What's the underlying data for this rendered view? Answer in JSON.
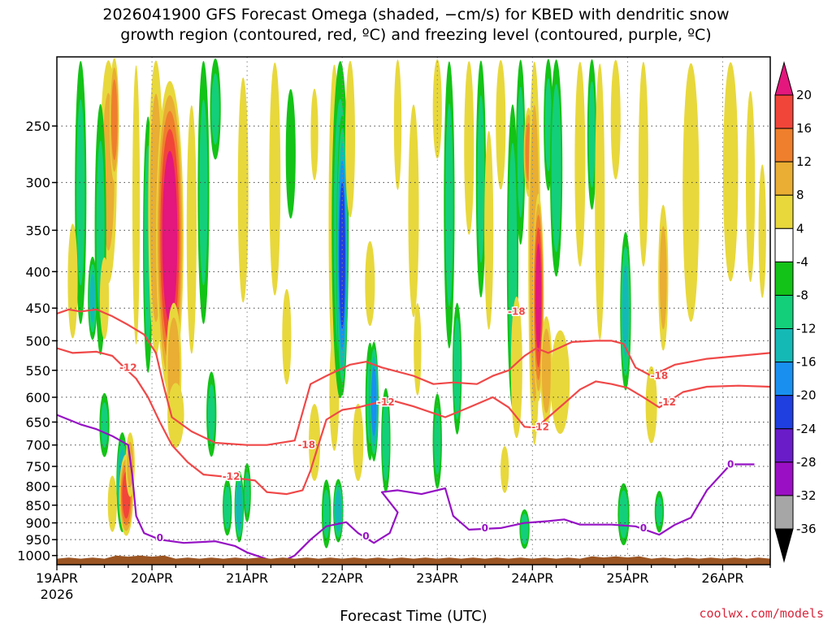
{
  "chart_data": {
    "type": "heatmap",
    "title_lines": [
      "2026041900 GFS Forecast Omega (shaded, −cm/s) for KBED with dendritic snow",
      "growth region (contoured, red, ºC) and freezing level (contoured, purple, ºC)"
    ],
    "xlabel": "Forecast Time (UTC)",
    "ylabel": "",
    "credit": "coolwx.com/models",
    "x_ticks": [
      {
        "t": 0,
        "label": "19APR",
        "sub": "2026"
      },
      {
        "t": 24,
        "label": "20APR",
        "sub": ""
      },
      {
        "t": 48,
        "label": "21APR",
        "sub": ""
      },
      {
        "t": 72,
        "label": "22APR",
        "sub": ""
      },
      {
        "t": 96,
        "label": "23APR",
        "sub": ""
      },
      {
        "t": 120,
        "label": "24APR",
        "sub": ""
      },
      {
        "t": 144,
        "label": "25APR",
        "sub": ""
      },
      {
        "t": 168,
        "label": "26APR",
        "sub": ""
      }
    ],
    "x_range_hours": [
      0,
      180
    ],
    "y_ticks_hpa": [
      250,
      300,
      350,
      400,
      450,
      500,
      550,
      600,
      650,
      700,
      750,
      800,
      850,
      900,
      950,
      1000
    ],
    "y_range_hpa": [
      200,
      1030
    ],
    "y_scale": "log",
    "grid": true,
    "colorbar": {
      "labels": [
        "20",
        "16",
        "12",
        "8",
        "4",
        "-4",
        "-8",
        "-12",
        "-16",
        "-20",
        "-24",
        "-28",
        "-32",
        "-36"
      ],
      "bins": [
        {
          "color": "#e3177d"
        },
        {
          "color": "#f2453a"
        },
        {
          "color": "#ef7f2c"
        },
        {
          "color": "#e9ae33"
        },
        {
          "color": "#e8d83c"
        },
        {
          "color": "#ffffff"
        },
        {
          "color": "#13c317"
        },
        {
          "color": "#13cf7a"
        },
        {
          "color": "#14b9b6"
        },
        {
          "color": "#1990f0"
        },
        {
          "color": "#1f3fe0"
        },
        {
          "color": "#6a1cc9"
        },
        {
          "color": "#9b0fc4"
        },
        {
          "color": "#a6a6a6"
        }
      ],
      "top_arrow_color": "#e3177d",
      "bottom_arrow_color": "#000000"
    },
    "terrain_color": "#9b5523",
    "series": [
      {
        "name": "-18",
        "color": "#f04848",
        "labels": [
          [
            63,
            700
          ],
          [
            116,
            455
          ],
          [
            152,
            560
          ]
        ],
        "points": [
          [
            0,
            458
          ],
          [
            3,
            452
          ],
          [
            6,
            455
          ],
          [
            10,
            452
          ],
          [
            14,
            462
          ],
          [
            18,
            475
          ],
          [
            22,
            490
          ],
          [
            25,
            520
          ],
          [
            27,
            580
          ],
          [
            29,
            640
          ],
          [
            34,
            670
          ],
          [
            40,
            695
          ],
          [
            48,
            700
          ],
          [
            53,
            700
          ],
          [
            60,
            690
          ],
          [
            62,
            630
          ],
          [
            64,
            575
          ],
          [
            68,
            560
          ],
          [
            74,
            540
          ],
          [
            78,
            535
          ],
          [
            82,
            545
          ],
          [
            90,
            560
          ],
          [
            95,
            575
          ],
          [
            100,
            572
          ],
          [
            106,
            575
          ],
          [
            110,
            560
          ],
          [
            114,
            550
          ],
          [
            118,
            525
          ],
          [
            121,
            512
          ],
          [
            124,
            520
          ],
          [
            130,
            502
          ],
          [
            136,
            500
          ],
          [
            140,
            500
          ],
          [
            143,
            505
          ],
          [
            146,
            545
          ],
          [
            150,
            560
          ],
          [
            156,
            540
          ],
          [
            164,
            530
          ],
          [
            172,
            525
          ],
          [
            180,
            520
          ]
        ]
      },
      {
        "name": "-12",
        "color": "#f04848",
        "labels": [
          [
            18,
            545
          ],
          [
            44,
            775
          ],
          [
            83,
            610
          ],
          [
            122,
            660
          ],
          [
            154,
            610
          ]
        ],
        "points": [
          [
            0,
            512
          ],
          [
            4,
            520
          ],
          [
            10,
            518
          ],
          [
            14,
            525
          ],
          [
            17,
            545
          ],
          [
            20,
            565
          ],
          [
            23,
            600
          ],
          [
            26,
            650
          ],
          [
            29,
            700
          ],
          [
            33,
            740
          ],
          [
            37,
            770
          ],
          [
            42,
            775
          ],
          [
            50,
            785
          ],
          [
            53,
            815
          ],
          [
            58,
            820
          ],
          [
            62,
            810
          ],
          [
            64,
            760
          ],
          [
            66,
            700
          ],
          [
            68,
            645
          ],
          [
            72,
            625
          ],
          [
            76,
            620
          ],
          [
            80,
            612
          ],
          [
            84,
            605
          ],
          [
            90,
            618
          ],
          [
            98,
            640
          ],
          [
            104,
            620
          ],
          [
            110,
            600
          ],
          [
            114,
            620
          ],
          [
            118,
            660
          ],
          [
            121,
            662
          ],
          [
            124,
            640
          ],
          [
            128,
            612
          ],
          [
            132,
            585
          ],
          [
            136,
            570
          ],
          [
            140,
            575
          ],
          [
            144,
            582
          ],
          [
            148,
            600
          ],
          [
            152,
            620
          ],
          [
            158,
            590
          ],
          [
            164,
            580
          ],
          [
            172,
            578
          ],
          [
            180,
            580
          ]
        ]
      },
      {
        "name": "0",
        "color": "#9512c4",
        "labels": [
          [
            26,
            945
          ],
          [
            78,
            940
          ],
          [
            108,
            915
          ],
          [
            148,
            915
          ],
          [
            170,
            745
          ]
        ],
        "points": [
          [
            0,
            635
          ],
          [
            6,
            655
          ],
          [
            10,
            665
          ],
          [
            14,
            680
          ],
          [
            18,
            700
          ],
          [
            19,
            770
          ],
          [
            20,
            880
          ],
          [
            22,
            930
          ],
          [
            26,
            950
          ],
          [
            32,
            960
          ],
          [
            40,
            955
          ],
          [
            45,
            970
          ],
          [
            48,
            990
          ],
          [
            56,
            1025
          ],
          [
            60,
            1000
          ],
          [
            64,
            950
          ],
          [
            68,
            910
          ],
          [
            73,
            898
          ],
          [
            76,
            930
          ],
          [
            80,
            960
          ],
          [
            84,
            930
          ],
          [
            86,
            870
          ],
          [
            82,
            815
          ],
          [
            86,
            810
          ],
          [
            92,
            820
          ],
          [
            98,
            805
          ],
          [
            100,
            880
          ],
          [
            104,
            920
          ],
          [
            112,
            915
          ],
          [
            118,
            900
          ],
          [
            124,
            895
          ],
          [
            128,
            890
          ],
          [
            132,
            905
          ],
          [
            140,
            905
          ],
          [
            146,
            910
          ],
          [
            152,
            935
          ],
          [
            156,
            905
          ],
          [
            160,
            885
          ],
          [
            164,
            810
          ],
          [
            170,
            745
          ],
          [
            176,
            745
          ]
        ]
      }
    ],
    "omega_blobs": [
      {
        "t": 6,
        "p": 280,
        "rt": 1.5,
        "rp": 200,
        "v": -8
      },
      {
        "t": 13,
        "p": 270,
        "rt": 2.2,
        "rp": 150,
        "v": 8
      },
      {
        "t": 14.5,
        "p": 240,
        "rt": 1.2,
        "rp": 60,
        "v": 14
      },
      {
        "t": 4,
        "p": 420,
        "rt": 1.3,
        "rp": 80,
        "v": 6
      },
      {
        "t": 9,
        "p": 440,
        "rt": 1.2,
        "rp": 60,
        "v": -12
      },
      {
        "t": 11,
        "p": 380,
        "rt": 1.5,
        "rp": 150,
        "v": -8
      },
      {
        "t": 12,
        "p": 440,
        "rt": 1.2,
        "rp": 60,
        "v": 6
      },
      {
        "t": 12,
        "p": 660,
        "rt": 1.3,
        "rp": 70,
        "v": -8
      },
      {
        "t": 16.5,
        "p": 800,
        "rt": 1.5,
        "rp": 130,
        "v": -14
      },
      {
        "t": 17.5,
        "p": 830,
        "rt": 1.8,
        "rp": 110,
        "v": 18
      },
      {
        "t": 18.5,
        "p": 750,
        "rt": 1.2,
        "rp": 80,
        "v": 8
      },
      {
        "t": 14,
        "p": 850,
        "rt": 1.2,
        "rp": 80,
        "v": 6
      },
      {
        "t": 20,
        "p": 320,
        "rt": 1.0,
        "rp": 200,
        "v": 4
      },
      {
        "t": 23,
        "p": 400,
        "rt": 1.3,
        "rp": 160,
        "v": -10
      },
      {
        "t": 25,
        "p": 330,
        "rt": 2.0,
        "rp": 200,
        "v": 10
      },
      {
        "t": 28.5,
        "p": 405,
        "rt": 3.5,
        "rp": 190,
        "v": 23
      },
      {
        "t": 29.5,
        "p": 560,
        "rt": 2.0,
        "rp": 120,
        "v": 10
      },
      {
        "t": 30,
        "p": 640,
        "rt": 2.2,
        "rp": 70,
        "v": 5
      },
      {
        "t": 34,
        "p": 380,
        "rt": 1.3,
        "rp": 150,
        "v": 6
      },
      {
        "t": 37,
        "p": 280,
        "rt": 1.5,
        "rp": 200,
        "v": -8
      },
      {
        "t": 40,
        "p": 220,
        "rt": 1.4,
        "rp": 60,
        "v": -8
      },
      {
        "t": 39,
        "p": 640,
        "rt": 1.3,
        "rp": 90,
        "v": -8
      },
      {
        "t": 43,
        "p": 860,
        "rt": 1.2,
        "rp": 80,
        "v": -10
      },
      {
        "t": 46,
        "p": 860,
        "rt": 1.2,
        "rp": 100,
        "v": -15
      },
      {
        "t": 48,
        "p": 820,
        "rt": 1.0,
        "rp": 80,
        "v": -8
      },
      {
        "t": 47,
        "p": 330,
        "rt": 1.4,
        "rp": 120,
        "v": 5
      },
      {
        "t": 55,
        "p": 320,
        "rt": 1.5,
        "rp": 120,
        "v": 5
      },
      {
        "t": 59,
        "p": 280,
        "rt": 1.3,
        "rp": 60,
        "v": -6
      },
      {
        "t": 58,
        "p": 500,
        "rt": 1.2,
        "rp": 80,
        "v": 5
      },
      {
        "t": 65,
        "p": 260,
        "rt": 1.0,
        "rp": 40,
        "v": 5
      },
      {
        "t": 65,
        "p": 700,
        "rt": 1.5,
        "rp": 90,
        "v": 6
      },
      {
        "t": 68,
        "p": 880,
        "rt": 1.2,
        "rp": 100,
        "v": -8
      },
      {
        "t": 70,
        "p": 600,
        "rt": 1.3,
        "rp": 120,
        "v": 5
      },
      {
        "t": 70,
        "p": 380,
        "rt": 1.5,
        "rp": 200,
        "v": 5
      },
      {
        "t": 71.5,
        "p": 330,
        "rt": 2.2,
        "rp": 280,
        "v": -10
      },
      {
        "t": 72,
        "p": 420,
        "rt": 1.5,
        "rp": 180,
        "v": -22
      },
      {
        "t": 71,
        "p": 870,
        "rt": 1.3,
        "rp": 90,
        "v": -14
      },
      {
        "t": 74,
        "p": 260,
        "rt": 1.3,
        "rp": 80,
        "v": 5
      },
      {
        "t": 76,
        "p": 700,
        "rt": 1.4,
        "rp": 90,
        "v": 7
      },
      {
        "t": 79,
        "p": 620,
        "rt": 1.2,
        "rp": 120,
        "v": -8
      },
      {
        "t": 80,
        "p": 620,
        "rt": 1.2,
        "rp": 120,
        "v": -18
      },
      {
        "t": 79,
        "p": 420,
        "rt": 1.3,
        "rp": 60,
        "v": 5
      },
      {
        "t": 83,
        "p": 700,
        "rt": 1.2,
        "rp": 120,
        "v": -10
      },
      {
        "t": 86,
        "p": 250,
        "rt": 1.0,
        "rp": 60,
        "v": 6
      },
      {
        "t": 90,
        "p": 350,
        "rt": 1.4,
        "rp": 120,
        "v": 6
      },
      {
        "t": 91,
        "p": 520,
        "rt": 1.0,
        "rp": 80,
        "v": 6
      },
      {
        "t": 96,
        "p": 220,
        "rt": 1.2,
        "rp": 60,
        "v": 5
      },
      {
        "t": 96,
        "p": 700,
        "rt": 1.2,
        "rp": 110,
        "v": -8
      },
      {
        "t": 99,
        "p": 320,
        "rt": 1.4,
        "rp": 200,
        "v": -8
      },
      {
        "t": 101,
        "p": 560,
        "rt": 1.2,
        "rp": 120,
        "v": -10
      },
      {
        "t": 104,
        "p": 260,
        "rt": 1.3,
        "rp": 100,
        "v": 5
      },
      {
        "t": 107,
        "p": 300,
        "rt": 1.3,
        "rp": 140,
        "v": -8
      },
      {
        "t": 109,
        "p": 370,
        "rt": 1.2,
        "rp": 120,
        "v": 5
      },
      {
        "t": 112,
        "p": 230,
        "rt": 1.3,
        "rp": 80,
        "v": 5
      },
      {
        "t": 113,
        "p": 760,
        "rt": 1.1,
        "rp": 60,
        "v": 5
      },
      {
        "t": 115,
        "p": 430,
        "rt": 1.5,
        "rp": 200,
        "v": -9
      },
      {
        "t": 116,
        "p": 560,
        "rt": 1.5,
        "rp": 130,
        "v": 7
      },
      {
        "t": 117,
        "p": 270,
        "rt": 1.2,
        "rp": 100,
        "v": -8
      },
      {
        "t": 118,
        "p": 920,
        "rt": 1.3,
        "rp": 60,
        "v": -10
      },
      {
        "t": 119,
        "p": 275,
        "rt": 1.2,
        "rp": 40,
        "v": 14
      },
      {
        "t": 120.5,
        "p": 430,
        "rt": 1.6,
        "rp": 280,
        "v": 10
      },
      {
        "t": 121.5,
        "p": 460,
        "rt": 1.4,
        "rp": 150,
        "v": 22
      },
      {
        "t": 123.5,
        "p": 560,
        "rt": 1.5,
        "rp": 100,
        "v": 10
      },
      {
        "t": 127,
        "p": 580,
        "rt": 2.5,
        "rp": 100,
        "v": 6
      },
      {
        "t": 124,
        "p": 230,
        "rt": 1.2,
        "rp": 80,
        "v": -8
      },
      {
        "t": 126,
        "p": 290,
        "rt": 1.6,
        "rp": 120,
        "v": -10
      },
      {
        "t": 132,
        "p": 280,
        "rt": 1.4,
        "rp": 120,
        "v": 5
      },
      {
        "t": 135,
        "p": 250,
        "rt": 1.2,
        "rp": 80,
        "v": -8
      },
      {
        "t": 137,
        "p": 330,
        "rt": 1.3,
        "rp": 180,
        "v": 5
      },
      {
        "t": 141,
        "p": 240,
        "rt": 1.3,
        "rp": 60,
        "v": 5
      },
      {
        "t": 143.5,
        "p": 470,
        "rt": 1.4,
        "rp": 120,
        "v": -12
      },
      {
        "t": 143,
        "p": 880,
        "rt": 1.5,
        "rp": 90,
        "v": -10
      },
      {
        "t": 148,
        "p": 280,
        "rt": 1.3,
        "rp": 120,
        "v": 5
      },
      {
        "t": 150,
        "p": 620,
        "rt": 1.5,
        "rp": 80,
        "v": 6
      },
      {
        "t": 153,
        "p": 420,
        "rt": 1.3,
        "rp": 100,
        "v": 8
      },
      {
        "t": 152,
        "p": 870,
        "rt": 1.2,
        "rp": 60,
        "v": -8
      },
      {
        "t": 160,
        "p": 320,
        "rt": 2.2,
        "rp": 160,
        "v": 5
      },
      {
        "t": 170,
        "p": 280,
        "rt": 2.0,
        "rp": 140,
        "v": 5
      },
      {
        "t": 175,
        "p": 320,
        "rt": 1.2,
        "rp": 100,
        "v": 5
      },
      {
        "t": 178,
        "p": 360,
        "rt": 1.0,
        "rp": 80,
        "v": 5
      }
    ]
  }
}
